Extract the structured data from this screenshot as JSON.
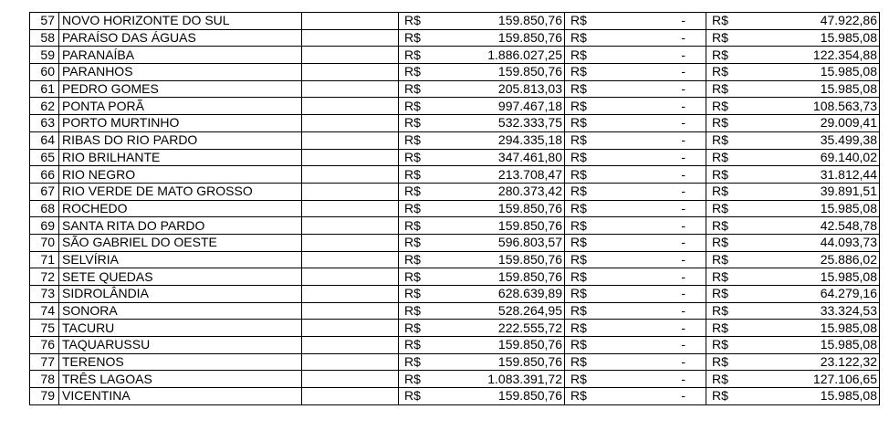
{
  "currency": "R$",
  "rows": [
    {
      "n": "57",
      "name": "NOVO HORIZONTE DO SUL",
      "v1": "159.850,76",
      "v2": "-",
      "v3": "47.922,86"
    },
    {
      "n": "58",
      "name": "PARAÍSO DAS ÁGUAS",
      "v1": "159.850,76",
      "v2": "-",
      "v3": "15.985,08"
    },
    {
      "n": "59",
      "name": "PARANAÍBA",
      "v1": "1.886.027,25",
      "v2": "-",
      "v3": "122.354,88"
    },
    {
      "n": "60",
      "name": "PARANHOS",
      "v1": "159.850,76",
      "v2": "-",
      "v3": "15.985,08"
    },
    {
      "n": "61",
      "name": "PEDRO GOMES",
      "v1": "205.813,03",
      "v2": "-",
      "v3": "15.985,08"
    },
    {
      "n": "62",
      "name": "PONTA PORÃ",
      "v1": "997.467,18",
      "v2": "-",
      "v3": "108.563,73"
    },
    {
      "n": "63",
      "name": "PORTO MURTINHO",
      "v1": "532.333,75",
      "v2": "-",
      "v3": "29.009,41"
    },
    {
      "n": "64",
      "name": "RIBAS DO RIO PARDO",
      "v1": "294.335,18",
      "v2": "-",
      "v3": "35.499,38"
    },
    {
      "n": "65",
      "name": "RIO BRILHANTE",
      "v1": "347.461,80",
      "v2": "-",
      "v3": "69.140,02"
    },
    {
      "n": "66",
      "name": "RIO NEGRO",
      "v1": "213.708,47",
      "v2": "-",
      "v3": "31.812,44"
    },
    {
      "n": "67",
      "name": "RIO VERDE DE MATO GROSSO",
      "v1": "280.373,42",
      "v2": "-",
      "v3": "39.891,51"
    },
    {
      "n": "68",
      "name": "ROCHEDO",
      "v1": "159.850,76",
      "v2": "-",
      "v3": "15.985,08"
    },
    {
      "n": "69",
      "name": "SANTA RITA DO PARDO",
      "v1": "159.850,76",
      "v2": "-",
      "v3": "42.548,78"
    },
    {
      "n": "70",
      "name": "SÃO GABRIEL DO OESTE",
      "v1": "596.803,57",
      "v2": "-",
      "v3": "44.093,73"
    },
    {
      "n": "71",
      "name": "SELVÍRIA",
      "v1": "159.850,76",
      "v2": "-",
      "v3": "25.886,02"
    },
    {
      "n": "72",
      "name": "SETE QUEDAS",
      "v1": "159.850,76",
      "v2": "-",
      "v3": "15.985,08"
    },
    {
      "n": "73",
      "name": "SIDROLÂNDIA",
      "v1": "628.639,89",
      "v2": "-",
      "v3": "64.279,16"
    },
    {
      "n": "74",
      "name": "SONORA",
      "v1": "528.264,95",
      "v2": "-",
      "v3": "33.324,53"
    },
    {
      "n": "75",
      "name": "TACURU",
      "v1": "222.555,72",
      "v2": "-",
      "v3": "15.985,08"
    },
    {
      "n": "76",
      "name": "TAQUARUSSU",
      "v1": "159.850,76",
      "v2": "-",
      "v3": "15.985,08"
    },
    {
      "n": "77",
      "name": "TERENOS",
      "v1": "159.850,76",
      "v2": "-",
      "v3": "23.122,32"
    },
    {
      "n": "78",
      "name": "TRÊS LAGOAS",
      "v1": "1.083.391,72",
      "v2": "-",
      "v3": "127.106,65"
    },
    {
      "n": "79",
      "name": "VICENTINA",
      "v1": "159.850,76",
      "v2": "-",
      "v3": "15.985,08"
    }
  ]
}
